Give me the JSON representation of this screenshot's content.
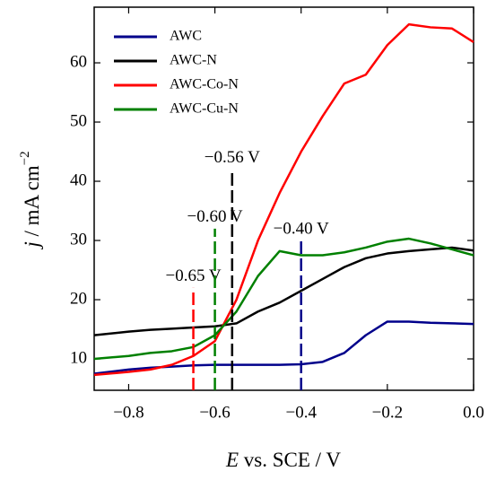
{
  "chart_data": {
    "type": "line",
    "xlabel": {
      "italic": "E",
      "text": " vs. SCE / V"
    },
    "ylabel": {
      "italic": "j",
      "text": " / mA cm",
      "sup": "−2"
    },
    "x": [
      -0.88,
      -0.8,
      -0.75,
      -0.7,
      -0.65,
      -0.6,
      -0.55,
      -0.5,
      -0.45,
      -0.4,
      -0.35,
      -0.3,
      -0.25,
      -0.2,
      -0.15,
      -0.1,
      -0.05,
      0
    ],
    "series": [
      {
        "name": "AWC",
        "color": "#00008b",
        "values": [
          7.5,
          8.2,
          8.5,
          8.7,
          8.9,
          9,
          9,
          9,
          9,
          9.1,
          9.5,
          11,
          14,
          16.3,
          16.3,
          16.1,
          16,
          15.9
        ]
      },
      {
        "name": "AWC-N",
        "color": "#000000",
        "values": [
          14,
          14.6,
          14.9,
          15.1,
          15.3,
          15.5,
          16,
          18,
          19.5,
          21.5,
          23.5,
          25.5,
          27,
          27.8,
          28.2,
          28.5,
          28.8,
          28.3
        ]
      },
      {
        "name": "AWC-Co-N",
        "color": "#ff0000",
        "values": [
          7.3,
          7.8,
          8.2,
          9,
          10.5,
          13,
          20,
          30,
          38,
          45,
          51,
          56.5,
          58,
          63,
          66.5,
          66,
          65.8,
          63.5
        ]
      },
      {
        "name": "AWC-Cu-N",
        "color": "#008000",
        "values": [
          10,
          10.5,
          11,
          11.3,
          12,
          14,
          18,
          24,
          28.2,
          27.5,
          27.5,
          28,
          28.8,
          29.8,
          30.3,
          29.5,
          28.5,
          27.5
        ]
      }
    ],
    "annotations": [
      {
        "x": -0.65,
        "top": 22,
        "label": "−0.65 V",
        "color": "#ff0000"
      },
      {
        "x": -0.6,
        "top": 32,
        "label": "−0.60 V",
        "color": "#008000"
      },
      {
        "x": -0.56,
        "top": 42,
        "label": "−0.56 V",
        "color": "#000000"
      },
      {
        "x": -0.4,
        "top": 30,
        "label": "−0.40 V",
        "color": "#00008b"
      }
    ],
    "xlim": [
      -0.88,
      0
    ],
    "ylim": [
      4.7,
      69.4
    ],
    "xticks": [
      {
        "value": -0.8,
        "label": "−0.8"
      },
      {
        "value": -0.6,
        "label": "−0.6"
      },
      {
        "value": -0.4,
        "label": "−0.4"
      },
      {
        "value": -0.2,
        "label": "−0.2"
      },
      {
        "value": 0,
        "label": "0.0"
      }
    ],
    "yticks": [
      10,
      20,
      30,
      40,
      50,
      60
    ],
    "legend": "upper-left"
  }
}
